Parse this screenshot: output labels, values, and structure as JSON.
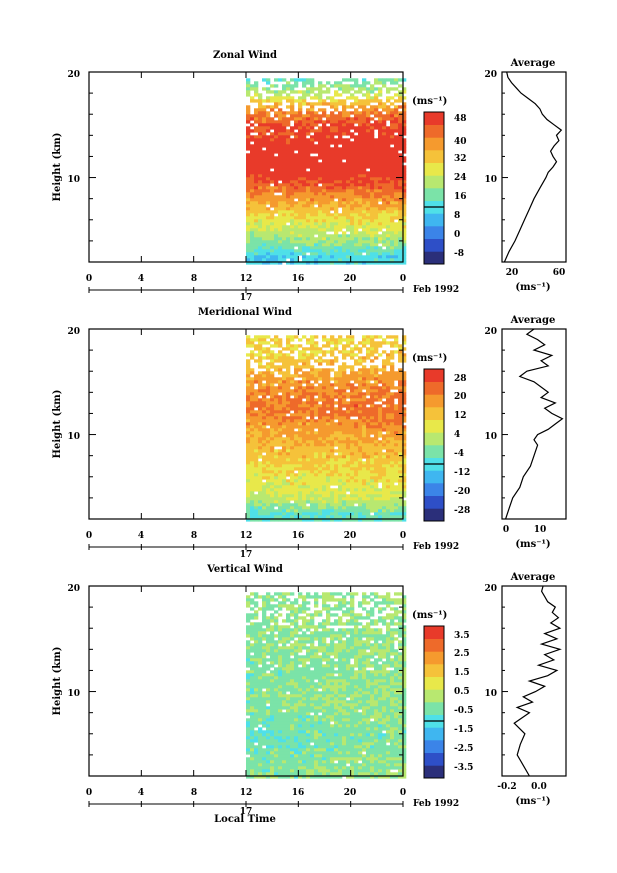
{
  "panels": [
    {
      "title": "Zonal Wind",
      "ylabel": "Height (km)",
      "units": "(ms⁻¹)",
      "y_ticks": [
        "20",
        "10"
      ],
      "x_ticks": [
        "0",
        "4",
        "8",
        "12",
        "16",
        "20",
        "0"
      ],
      "day_label": "17",
      "date_label": "Feb 1992",
      "colorbar_ticks": [
        "48",
        "40",
        "32",
        "24",
        "16",
        "8",
        "0",
        "-8"
      ],
      "profile_title": "Average",
      "profile_y_ticks": [
        "20",
        "10"
      ],
      "profile_x_ticks": [
        "20",
        "60"
      ],
      "profile_xlabel": "(ms⁻¹)"
    },
    {
      "title": "Meridional Wind",
      "ylabel": "Height (km)",
      "units": "(ms⁻¹)",
      "y_ticks": [
        "20",
        "10"
      ],
      "x_ticks": [
        "0",
        "4",
        "8",
        "12",
        "16",
        "20",
        "0"
      ],
      "day_label": "17",
      "date_label": "Feb 1992",
      "colorbar_ticks": [
        "28",
        "20",
        "12",
        "4",
        "-4",
        "-12",
        "-20",
        "-28"
      ],
      "profile_title": "Average",
      "profile_y_ticks": [
        "20",
        "10"
      ],
      "profile_x_ticks": [
        "0",
        "10"
      ],
      "profile_xlabel": "(ms⁻¹)"
    },
    {
      "title": "Vertical Wind",
      "ylabel": "Height (km)",
      "units": "(ms⁻¹)",
      "y_ticks": [
        "20",
        "10"
      ],
      "x_ticks": [
        "0",
        "4",
        "8",
        "12",
        "16",
        "20",
        "0"
      ],
      "day_label": "17",
      "date_label": "Feb 1992",
      "colorbar_ticks": [
        "3.5",
        "2.5",
        "1.5",
        "0.5",
        "-0.5",
        "-1.5",
        "-2.5",
        "-3.5"
      ],
      "profile_title": "Average",
      "profile_y_ticks": [
        "20",
        "10"
      ],
      "profile_x_ticks": [
        "-0.2",
        "0.0"
      ],
      "profile_xlabel": "(ms⁻¹)"
    }
  ],
  "xlabel": "Local Time",
  "colormap": [
    "#2b2f7a",
    "#2e4fc7",
    "#3b84e8",
    "#3fb6f0",
    "#4fe0e8",
    "#7be3a8",
    "#b8e870",
    "#e8e84a",
    "#f5c23a",
    "#f59a2e",
    "#ee6a2a",
    "#e83a2a"
  ],
  "chart_data": [
    {
      "type": "heatmap",
      "title": "Zonal Wind",
      "xlabel": "",
      "ylabel": "Height (km)",
      "x_range_hours_local_time": [
        0,
        24
      ],
      "data_start_hour": 12,
      "y_range_km": [
        2,
        20
      ],
      "colorbar_range": [
        -12,
        52
      ],
      "description_levels_by_height_km": [
        {
          "height": 2.5,
          "value": 10
        },
        {
          "height": 4,
          "value": 20
        },
        {
          "height": 6,
          "value": 28
        },
        {
          "height": 8,
          "value": 38
        },
        {
          "height": 9.5,
          "value": 46
        },
        {
          "height": 11,
          "value": 52
        },
        {
          "height": 13,
          "value": 50
        },
        {
          "height": 15,
          "value": 46
        },
        {
          "height": 16.5,
          "value": 38
        },
        {
          "height": 18,
          "value": 22
        },
        {
          "height": 19.5,
          "value": 14
        }
      ],
      "profile": {
        "title": "Average",
        "x_range": [
          12,
          66
        ],
        "points": [
          {
            "height": 2,
            "value": 14
          },
          {
            "height": 3,
            "value": 18
          },
          {
            "height": 4,
            "value": 23
          },
          {
            "height": 5,
            "value": 27
          },
          {
            "height": 6,
            "value": 31
          },
          {
            "height": 7,
            "value": 35
          },
          {
            "height": 8,
            "value": 39
          },
          {
            "height": 9,
            "value": 44
          },
          {
            "height": 10,
            "value": 49
          },
          {
            "height": 10.5,
            "value": 51
          },
          {
            "height": 11,
            "value": 55
          },
          {
            "height": 11.5,
            "value": 58
          },
          {
            "height": 12,
            "value": 55
          },
          {
            "height": 12.5,
            "value": 53
          },
          {
            "height": 13,
            "value": 56
          },
          {
            "height": 13.5,
            "value": 60
          },
          {
            "height": 14,
            "value": 58
          },
          {
            "height": 14.5,
            "value": 62
          },
          {
            "height": 15,
            "value": 56
          },
          {
            "height": 15.5,
            "value": 50
          },
          {
            "height": 16,
            "value": 46
          },
          {
            "height": 16.5,
            "value": 44
          },
          {
            "height": 17,
            "value": 40
          },
          {
            "height": 17.5,
            "value": 34
          },
          {
            "height": 18,
            "value": 28
          },
          {
            "height": 18.5,
            "value": 24
          },
          {
            "height": 19,
            "value": 20
          },
          {
            "height": 19.5,
            "value": 17
          },
          {
            "height": 20,
            "value": 16
          }
        ]
      }
    },
    {
      "type": "heatmap",
      "title": "Meridional Wind",
      "xlabel": "",
      "ylabel": "Height (km)",
      "x_range_hours_local_time": [
        0,
        24
      ],
      "data_start_hour": 12,
      "y_range_km": [
        2,
        20
      ],
      "colorbar_range": [
        -32,
        32
      ],
      "description_levels_by_height_km": [
        {
          "height": 2.5,
          "value": -6
        },
        {
          "height": 4,
          "value": 4
        },
        {
          "height": 6,
          "value": 8
        },
        {
          "height": 8,
          "value": 12
        },
        {
          "height": 10,
          "value": 16
        },
        {
          "height": 11.5,
          "value": 20
        },
        {
          "height": 13,
          "value": 22
        },
        {
          "height": 15,
          "value": 18
        },
        {
          "height": 17,
          "value": 12
        },
        {
          "height": 19,
          "value": 10
        }
      ],
      "profile": {
        "title": "Average",
        "x_range": [
          -1,
          17
        ],
        "points": [
          {
            "height": 2,
            "value": 0
          },
          {
            "height": 3,
            "value": 1
          },
          {
            "height": 4,
            "value": 2
          },
          {
            "height": 5,
            "value": 4
          },
          {
            "height": 6,
            "value": 5
          },
          {
            "height": 7,
            "value": 7
          },
          {
            "height": 8,
            "value": 8
          },
          {
            "height": 9,
            "value": 9
          },
          {
            "height": 9.5,
            "value": 8
          },
          {
            "height": 10,
            "value": 9
          },
          {
            "height": 10.5,
            "value": 12
          },
          {
            "height": 11,
            "value": 14
          },
          {
            "height": 11.5,
            "value": 16
          },
          {
            "height": 12,
            "value": 13
          },
          {
            "height": 12.5,
            "value": 11
          },
          {
            "height": 13,
            "value": 14
          },
          {
            "height": 13.5,
            "value": 10
          },
          {
            "height": 14,
            "value": 12
          },
          {
            "height": 15,
            "value": 8
          },
          {
            "height": 15.5,
            "value": 4
          },
          {
            "height": 16,
            "value": 6
          },
          {
            "height": 16.5,
            "value": 12
          },
          {
            "height": 17,
            "value": 10
          },
          {
            "height": 17.5,
            "value": 13
          },
          {
            "height": 18,
            "value": 8
          },
          {
            "height": 18.5,
            "value": 11
          },
          {
            "height": 19,
            "value": 9
          },
          {
            "height": 19.5,
            "value": 6
          },
          {
            "height": 20,
            "value": 8
          }
        ]
      }
    },
    {
      "type": "heatmap",
      "title": "Vertical Wind",
      "xlabel": "Local Time",
      "ylabel": "Height (km)",
      "x_range_hours_local_time": [
        0,
        24
      ],
      "data_start_hour": 12,
      "y_range_km": [
        2,
        20
      ],
      "colorbar_range": [
        -4,
        4
      ],
      "description_levels_by_height_km": [
        {
          "height": 3,
          "value": -0.3
        },
        {
          "height": 6,
          "value": -0.5
        },
        {
          "height": 9,
          "value": -0.2
        },
        {
          "height": 12,
          "value": -0.3
        },
        {
          "height": 15,
          "value": -0.1
        },
        {
          "height": 18,
          "value": -0.2
        }
      ],
      "profile": {
        "title": "Average",
        "x_range": [
          -0.3,
          0.12
        ],
        "points": [
          {
            "height": 2,
            "value": -0.12
          },
          {
            "height": 3,
            "value": -0.16
          },
          {
            "height": 4,
            "value": -0.2
          },
          {
            "height": 5,
            "value": -0.18
          },
          {
            "height": 6,
            "value": -0.15
          },
          {
            "height": 7,
            "value": -0.22
          },
          {
            "height": 8,
            "value": -0.12
          },
          {
            "height": 8.5,
            "value": -0.2
          },
          {
            "height": 9,
            "value": -0.1
          },
          {
            "height": 9.5,
            "value": -0.16
          },
          {
            "height": 10,
            "value": -0.08
          },
          {
            "height": 10.5,
            "value": -0.02
          },
          {
            "height": 11,
            "value": -0.12
          },
          {
            "height": 11.5,
            "value": 0.0
          },
          {
            "height": 12,
            "value": 0.06
          },
          {
            "height": 12.5,
            "value": -0.06
          },
          {
            "height": 13,
            "value": 0.04
          },
          {
            "height": 13.5,
            "value": -0.02
          },
          {
            "height": 14,
            "value": 0.08
          },
          {
            "height": 14.5,
            "value": -0.04
          },
          {
            "height": 15,
            "value": 0.06
          },
          {
            "height": 15.5,
            "value": -0.02
          },
          {
            "height": 16,
            "value": 0.08
          },
          {
            "height": 16.5,
            "value": 0.02
          },
          {
            "height": 17,
            "value": 0.07
          },
          {
            "height": 17.5,
            "value": 0.03
          },
          {
            "height": 18,
            "value": 0.05
          },
          {
            "height": 18.5,
            "value": 0.0
          },
          {
            "height": 19,
            "value": -0.02
          },
          {
            "height": 19.5,
            "value": -0.04
          },
          {
            "height": 20,
            "value": -0.03
          }
        ]
      }
    }
  ]
}
